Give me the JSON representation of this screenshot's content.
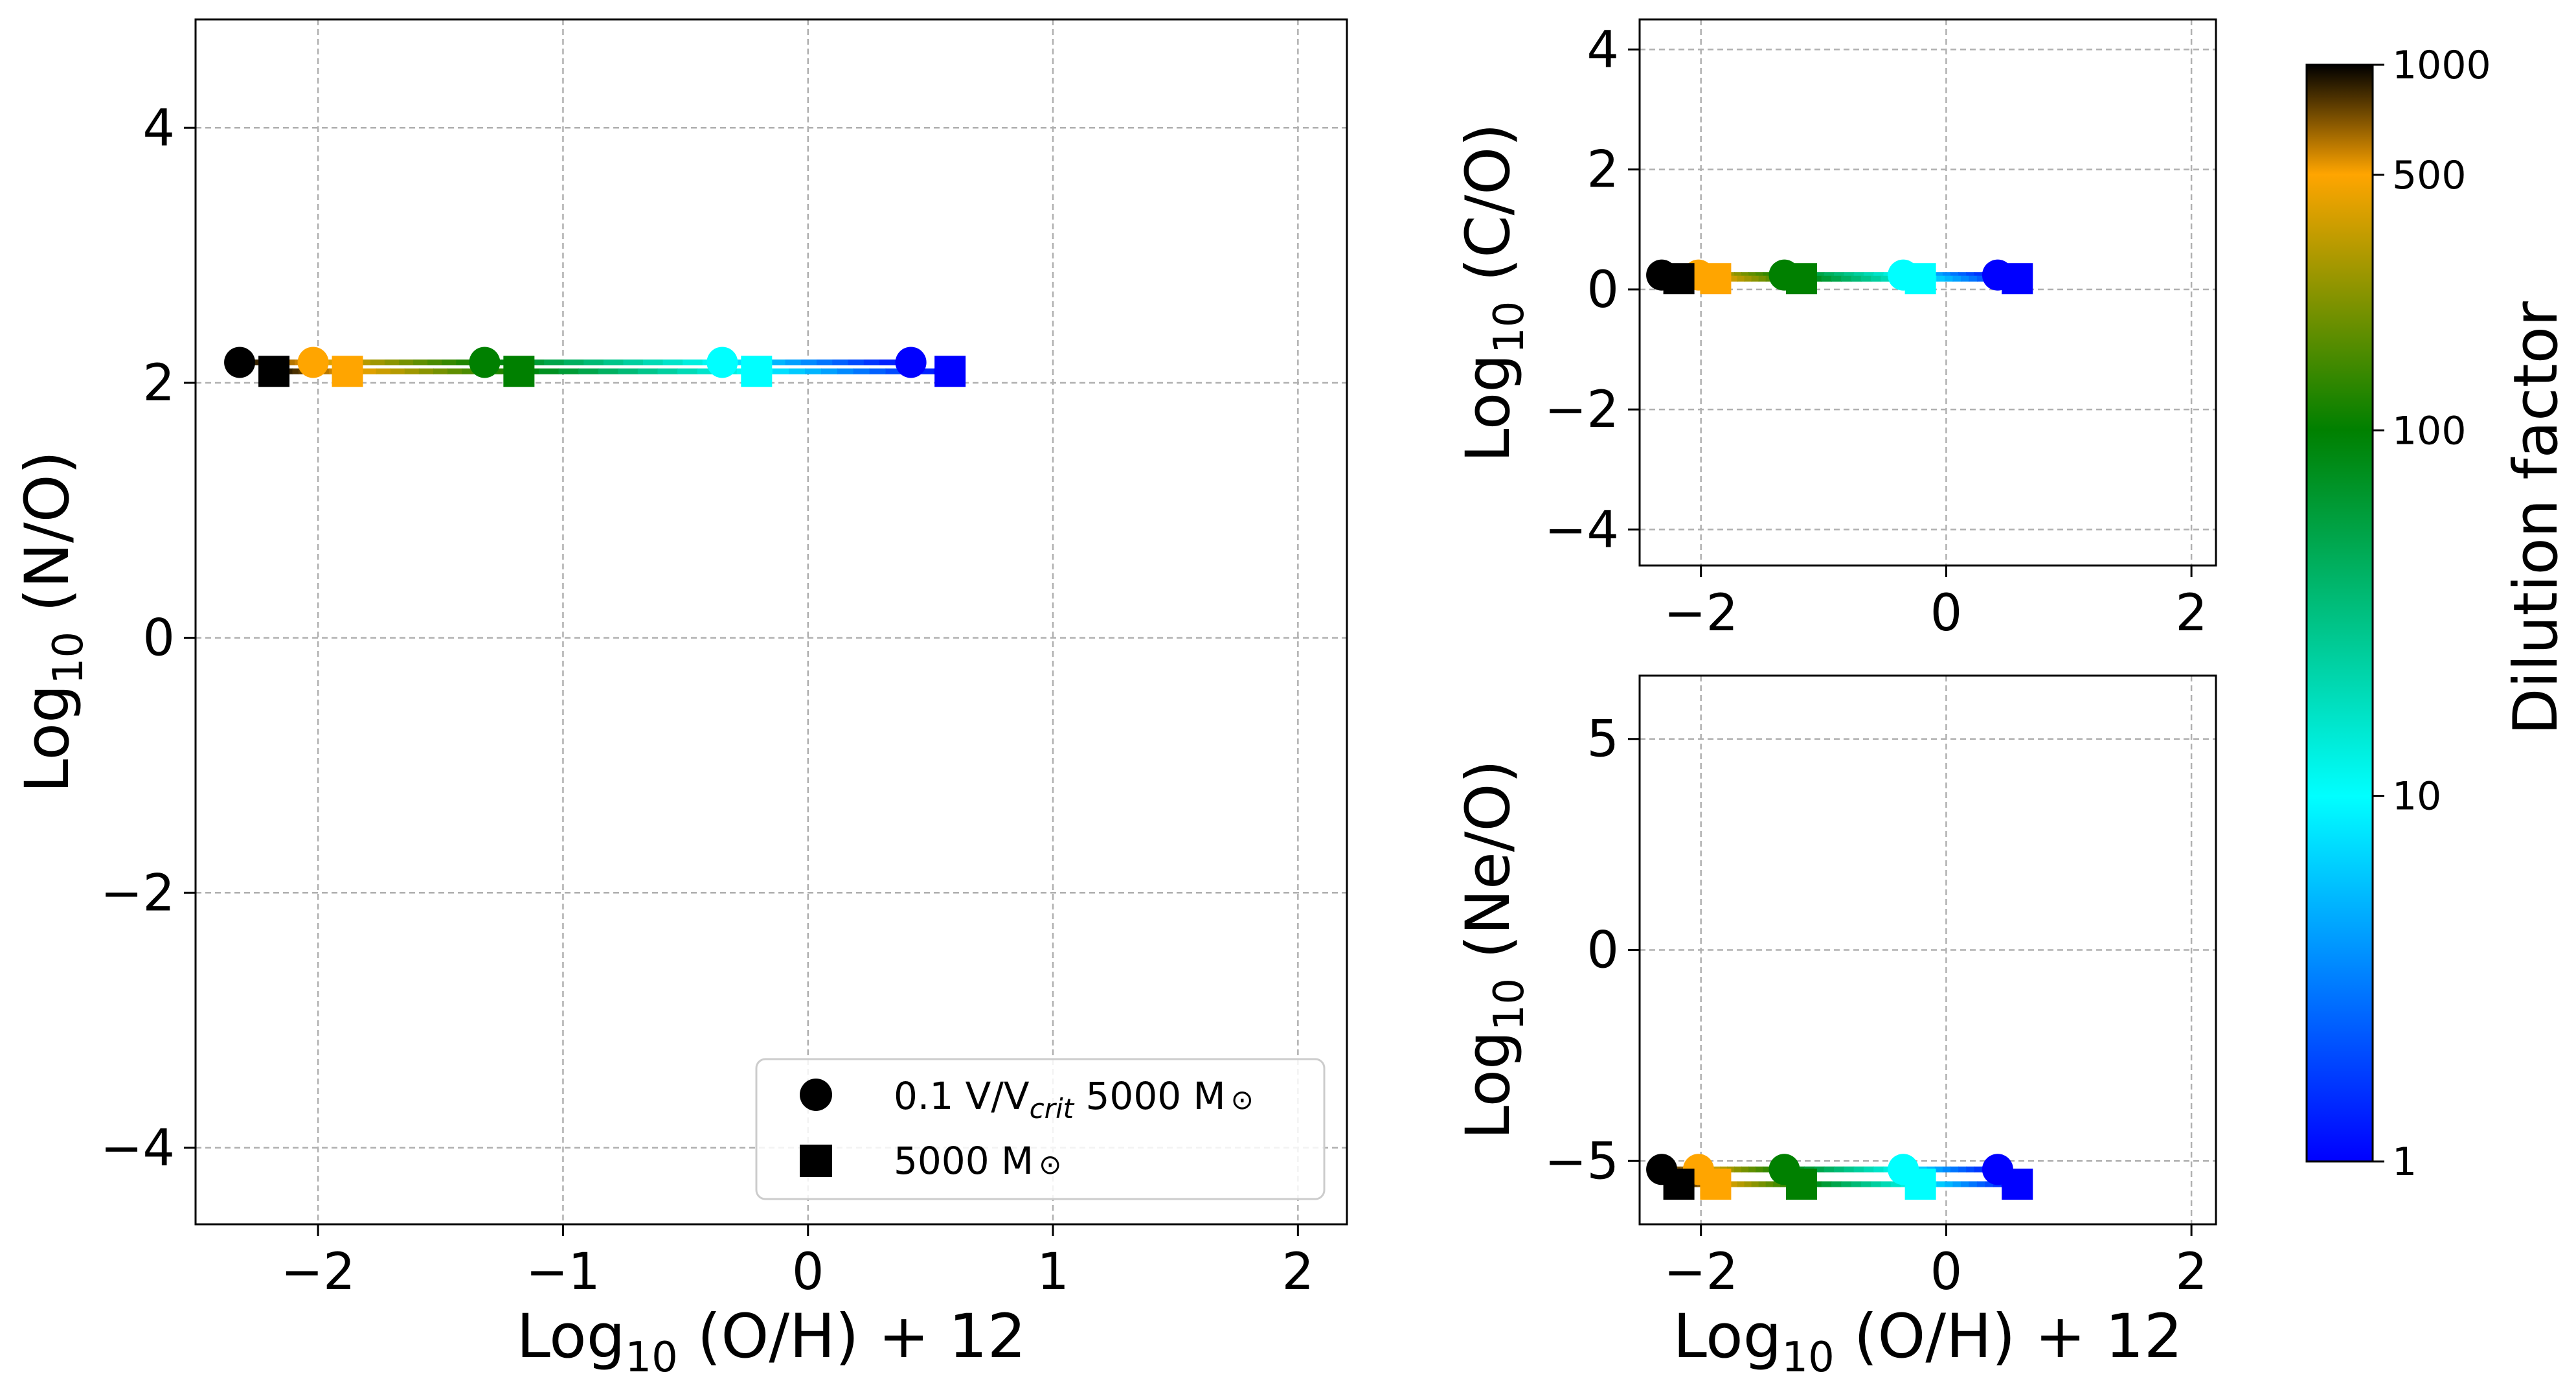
{
  "colors": {
    "colormap": [
      "#0000ff",
      "#00ffff",
      "#008000",
      "#ffa500",
      "#000000"
    ],
    "grid": "#b0b0b0"
  },
  "labels": {
    "x_prefix": "Log",
    "x_sub": "10",
    "x_suffix": " (O/H) + 12",
    "y_left_prefix": "Log",
    "y_left_sub": "10",
    "y_left_suffix": " (N/O)",
    "y_co_prefix": "Log",
    "y_co_sub": "10",
    "y_co_suffix": " (C/O)",
    "y_neo_prefix": "Log",
    "y_neo_sub": "10",
    "y_neo_suffix": " (Ne/O)",
    "colorbar": "Dilution factor"
  },
  "legend": {
    "entry1_a": "0.1 V/V",
    "entry1_sub": "crit",
    "entry1_b": " 5000 M",
    "entry1_sym": "⊙",
    "entry2_a": "5000 M",
    "entry2_sym": "⊙"
  },
  "chart_data": [
    {
      "type": "line",
      "panel": "N/O",
      "xlim": [
        -2.5,
        2.2
      ],
      "ylim": [
        -4.6,
        4.85
      ],
      "xticks": [
        -2,
        -1,
        0,
        1,
        2
      ],
      "yticks": [
        -4,
        -2,
        0,
        2,
        4
      ],
      "xtick_labels": [
        "−2",
        "−1",
        "0",
        "1",
        "2"
      ],
      "ytick_labels": [
        "−4",
        "−2",
        "0",
        "2",
        "4"
      ],
      "grid": true,
      "legend_position": "lower right",
      "dilution": [
        1000,
        500,
        100,
        10,
        1
      ],
      "series": [
        {
          "name": "0.1 V/Vcrit 5000 Msun",
          "marker": "circle",
          "x": [
            -2.32,
            -2.02,
            -1.32,
            -0.35,
            0.42
          ],
          "y": [
            2.16,
            2.16,
            2.16,
            2.16,
            2.16
          ]
        },
        {
          "name": "5000 Msun",
          "marker": "square",
          "x": [
            -2.18,
            -1.88,
            -1.18,
            -0.21,
            0.58
          ],
          "y": [
            2.09,
            2.09,
            2.09,
            2.09,
            2.09
          ]
        }
      ]
    },
    {
      "type": "line",
      "panel": "C/O",
      "xlim": [
        -2.5,
        2.2
      ],
      "ylim": [
        -4.6,
        4.5
      ],
      "xticks": [
        -2,
        0,
        2
      ],
      "yticks": [
        -4,
        -2,
        0,
        2,
        4
      ],
      "xtick_labels": [
        "−2",
        "0",
        "2"
      ],
      "ytick_labels": [
        "−4",
        "−2",
        "0",
        "2",
        "4"
      ],
      "grid": true,
      "dilution": [
        1000,
        500,
        100,
        10,
        1
      ],
      "series": [
        {
          "name": "0.1 V/Vcrit 5000 Msun",
          "marker": "circle",
          "x": [
            -2.32,
            -2.02,
            -1.32,
            -0.35,
            0.42
          ],
          "y": [
            0.24,
            0.24,
            0.24,
            0.24,
            0.24
          ]
        },
        {
          "name": "5000 Msun",
          "marker": "square",
          "x": [
            -2.18,
            -1.88,
            -1.18,
            -0.21,
            0.58
          ],
          "y": [
            0.18,
            0.18,
            0.18,
            0.18,
            0.18
          ]
        }
      ]
    },
    {
      "type": "line",
      "panel": "Ne/O",
      "xlim": [
        -2.5,
        2.2
      ],
      "ylim": [
        -6.5,
        6.5
      ],
      "xticks": [
        -2,
        0,
        2
      ],
      "yticks": [
        -5,
        0,
        5
      ],
      "xtick_labels": [
        "−2",
        "0",
        "2"
      ],
      "ytick_labels": [
        "−5",
        "0",
        "5"
      ],
      "grid": true,
      "dilution": [
        1000,
        500,
        100,
        10,
        1
      ],
      "series": [
        {
          "name": "0.1 V/Vcrit 5000 Msun",
          "marker": "circle",
          "x": [
            -2.32,
            -2.02,
            -1.32,
            -0.35,
            0.42
          ],
          "y": [
            -5.2,
            -5.2,
            -5.2,
            -5.2,
            -5.2
          ]
        },
        {
          "name": "5000 Msun",
          "marker": "square",
          "x": [
            -2.18,
            -1.88,
            -1.18,
            -0.21,
            0.58
          ],
          "y": [
            -5.55,
            -5.55,
            -5.55,
            -5.55,
            -5.55
          ]
        }
      ]
    },
    {
      "type": "colorbar",
      "label": "Dilution factor",
      "scale": "log",
      "range": [
        1,
        1000
      ],
      "ticks": [
        1,
        10,
        100,
        500,
        1000
      ],
      "tick_labels": [
        "1",
        "10",
        "100",
        "500",
        "1000"
      ]
    }
  ]
}
